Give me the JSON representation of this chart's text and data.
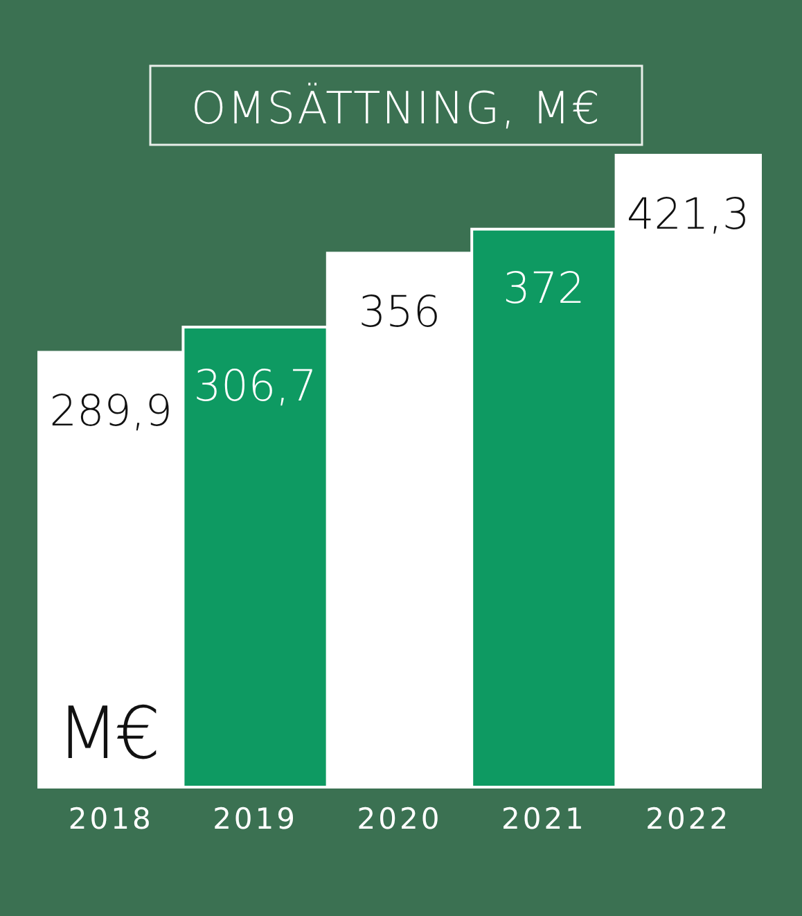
{
  "chart_data": {
    "type": "bar",
    "title": "OMSÄTTNING, M€",
    "ylabel": "M€",
    "tick_labels": "x",
    "categories": [
      "2018",
      "2019",
      "2020",
      "2021",
      "2022"
    ],
    "values": [
      289.9,
      306.7,
      356,
      372,
      421.3
    ],
    "colors": [
      "#ffffff",
      "#0e9a62",
      "#ffffff",
      "#0e9a62",
      "#ffffff"
    ],
    "value_labels": [
      "289,9",
      "306,7",
      "356",
      "372",
      "421,3"
    ]
  }
}
